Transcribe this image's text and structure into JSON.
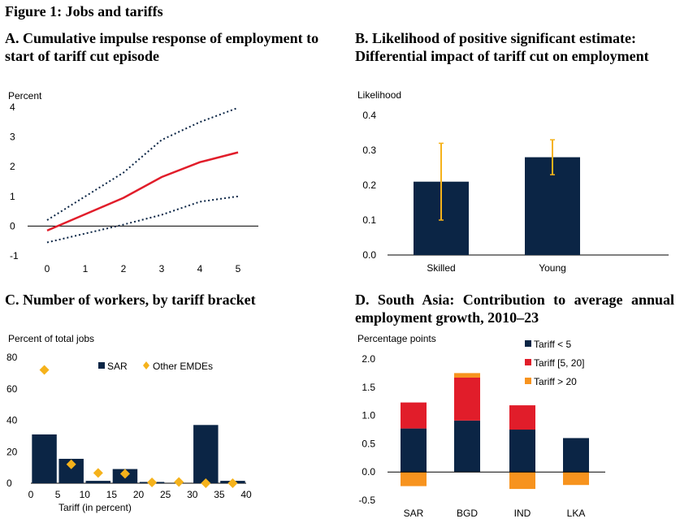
{
  "figure_title": "Figure 1: Jobs and tariffs",
  "colors": {
    "navy": "#0b2545",
    "red": "#e11d2a",
    "gold": "#f5b21b",
    "orange": "#f7931e",
    "dots": "#0b2545"
  },
  "chart_data": [
    {
      "id": "A",
      "type": "line",
      "title": "A. Cumulative impulse response of employment to start of tariff cut episode",
      "ylabel": "Percent",
      "x": [
        0,
        1,
        2,
        3,
        4,
        5
      ],
      "ylim": [
        -1,
        4
      ],
      "yticks": [
        -1,
        0,
        1,
        2,
        3,
        4
      ],
      "series": [
        {
          "role": "estimate",
          "values": [
            -0.15,
            0.4,
            0.95,
            1.65,
            2.15,
            2.48
          ]
        },
        {
          "role": "upper",
          "values": [
            0.2,
            1.0,
            1.8,
            2.9,
            3.5,
            3.98
          ]
        },
        {
          "role": "lower",
          "values": [
            -0.55,
            -0.25,
            0.05,
            0.38,
            0.82,
            1.0
          ]
        }
      ]
    },
    {
      "id": "B",
      "type": "bar",
      "title": "B. Likelihood of positive significant estimate: Differential impact of tariff cut on employment",
      "ylabel": "Likelihood",
      "categories": [
        "Skilled",
        "Young"
      ],
      "values": [
        0.21,
        0.28
      ],
      "error_low": [
        0.1,
        0.23
      ],
      "error_high": [
        0.32,
        0.33
      ],
      "ylim": [
        0,
        0.4
      ],
      "yticks": [
        "0.0",
        "0.1",
        "0.2",
        "0.3",
        "0.4"
      ]
    },
    {
      "id": "C",
      "type": "bar",
      "title": "C. Number of workers, by tariff bracket",
      "ylabel": "Percent of total jobs",
      "xlabel": "Tariff (in percent)",
      "x_centers": [
        2.5,
        7.5,
        12.5,
        17.5,
        22.5,
        27.5,
        32.5,
        37.5
      ],
      "xlim": [
        0,
        40
      ],
      "xticks": [
        0,
        5,
        10,
        15,
        20,
        25,
        30,
        35,
        40
      ],
      "ylim": [
        0,
        80
      ],
      "yticks": [
        0,
        20,
        40,
        60,
        80
      ],
      "series": [
        {
          "name": "SAR",
          "kind": "bar",
          "values": [
            31,
            15.5,
            1.5,
            9,
            0.8,
            0,
            37,
            1.5
          ]
        },
        {
          "name": "Other EMDEs",
          "kind": "diamond",
          "values": [
            72,
            12,
            6.5,
            6,
            0.5,
            0.8,
            0,
            0
          ]
        }
      ]
    },
    {
      "id": "D",
      "type": "bar",
      "stacked": true,
      "title": "D. South Asia: Contribution to average annual employment growth, 2010–23",
      "ylabel": "Percentage points",
      "categories": [
        "SAR",
        "BGD",
        "IND",
        "LKA"
      ],
      "ylim": [
        -0.5,
        2.0
      ],
      "yticks": [
        "-0.5",
        "0.0",
        "0.5",
        "1.0",
        "1.5",
        "2.0"
      ],
      "series": [
        {
          "name": "Tariff < 5",
          "values": [
            0.77,
            0.91,
            0.75,
            0.6
          ]
        },
        {
          "name": "Tariff [5, 20]",
          "values": [
            0.46,
            0.76,
            0.43,
            0
          ]
        },
        {
          "name": "Tariff > 20",
          "values": [
            -0.25,
            0.08,
            -0.3,
            -0.23
          ]
        }
      ]
    }
  ]
}
